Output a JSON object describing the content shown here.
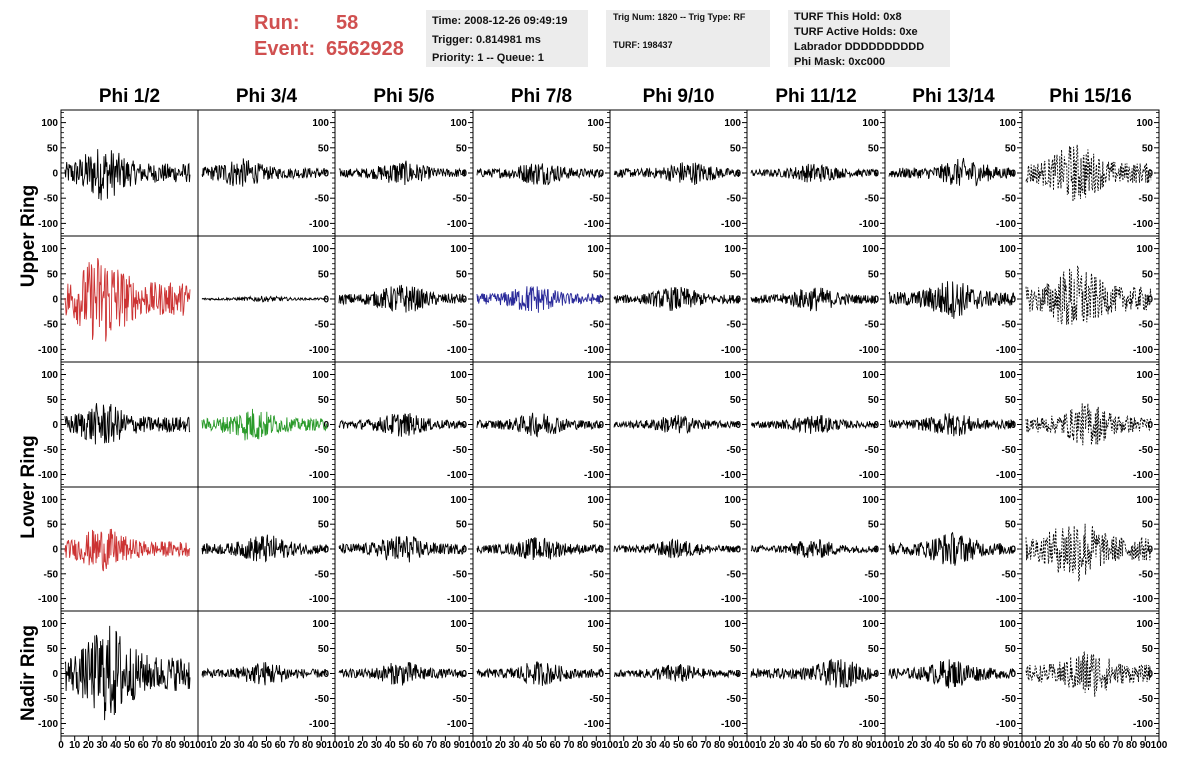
{
  "header": {
    "run_label": "Run:",
    "run_value": "58",
    "event_label": "Event:",
    "event_value": "6562928"
  },
  "info_boxes": {
    "time": [
      "Time: 2008-12-26 09:49:19",
      "Trigger: 0.814981 ms",
      "Priority: 1 -- Queue: 1"
    ],
    "trig": [
      "Trig Num: 1820 -- Trig Type: RF",
      "TURF: 198437"
    ],
    "turf": [
      "TURF This Hold: 0x8",
      "TURF Active Holds: 0xe",
      "Labrador DDDDDDDDDD",
      "Phi Mask: 0xc000"
    ]
  },
  "columns": [
    "Phi 1/2",
    "Phi 3/4",
    "Phi 5/6",
    "Phi 7/8",
    "Phi 9/10",
    "Phi 11/12",
    "Phi 13/14",
    "Phi 15/16"
  ],
  "rings": [
    "Upper Ring",
    "Lower Ring",
    "Nadir Ring"
  ],
  "colors": {
    "header_red": "#d05050",
    "box_bg": "#ececec",
    "trace_default": "#000000",
    "trace_red": "#cc3333",
    "trace_blue": "#2a2a9a",
    "trace_green": "#2a9a2a"
  },
  "chart_data": {
    "type": "line",
    "y_ticks": [
      "100",
      "50",
      "0",
      "-50",
      "-100"
    ],
    "ylim": [
      -125,
      125
    ],
    "x_ticks": [
      "0",
      "10",
      "20",
      "30",
      "40",
      "50",
      "60",
      "70",
      "80",
      "90",
      "100"
    ],
    "xlim": [
      0,
      100
    ],
    "panels": [
      [
        {
          "color": "#000000",
          "amp": 55,
          "peak": 30,
          "style": "solid"
        },
        {
          "color": "#000000",
          "amp": 30,
          "peak": 30,
          "style": "solid"
        },
        {
          "color": "#000000",
          "amp": 25,
          "peak": 50,
          "style": "solid"
        },
        {
          "color": "#000000",
          "amp": 25,
          "peak": 50,
          "style": "solid"
        },
        {
          "color": "#000000",
          "amp": 25,
          "peak": 60,
          "style": "solid"
        },
        {
          "color": "#000000",
          "amp": 20,
          "peak": 50,
          "style": "solid"
        },
        {
          "color": "#000000",
          "amp": 30,
          "peak": 60,
          "style": "solid"
        },
        {
          "color": "#000000",
          "amp": 60,
          "peak": 40,
          "style": "dashed"
        }
      ],
      [
        {
          "color": "#cc3333",
          "amp": 95,
          "peak": 30,
          "style": "solid"
        },
        {
          "color": "#000000",
          "amp": 6,
          "peak": 50,
          "style": "solid"
        },
        {
          "color": "#000000",
          "amp": 30,
          "peak": 50,
          "style": "solid"
        },
        {
          "color": "#2a2a9a",
          "amp": 30,
          "peak": 45,
          "style": "solid"
        },
        {
          "color": "#000000",
          "amp": 25,
          "peak": 50,
          "style": "solid"
        },
        {
          "color": "#000000",
          "amp": 25,
          "peak": 50,
          "style": "solid"
        },
        {
          "color": "#000000",
          "amp": 40,
          "peak": 50,
          "style": "solid"
        },
        {
          "color": "#000000",
          "amp": 70,
          "peak": 40,
          "style": "dashed"
        }
      ],
      [
        {
          "color": "#000000",
          "amp": 45,
          "peak": 30,
          "style": "solid"
        },
        {
          "color": "#2a9a2a",
          "amp": 35,
          "peak": 40,
          "style": "solid"
        },
        {
          "color": "#000000",
          "amp": 25,
          "peak": 50,
          "style": "solid"
        },
        {
          "color": "#000000",
          "amp": 25,
          "peak": 50,
          "style": "solid"
        },
        {
          "color": "#000000",
          "amp": 20,
          "peak": 50,
          "style": "solid"
        },
        {
          "color": "#000000",
          "amp": 20,
          "peak": 50,
          "style": "solid"
        },
        {
          "color": "#000000",
          "amp": 25,
          "peak": 50,
          "style": "solid"
        },
        {
          "color": "#000000",
          "amp": 45,
          "peak": 50,
          "style": "dashed"
        }
      ],
      [
        {
          "color": "#cc3333",
          "amp": 45,
          "peak": 30,
          "style": "solid"
        },
        {
          "color": "#000000",
          "amp": 30,
          "peak": 50,
          "style": "solid"
        },
        {
          "color": "#000000",
          "amp": 30,
          "peak": 50,
          "style": "solid"
        },
        {
          "color": "#000000",
          "amp": 25,
          "peak": 50,
          "style": "solid"
        },
        {
          "color": "#000000",
          "amp": 20,
          "peak": 50,
          "style": "solid"
        },
        {
          "color": "#000000",
          "amp": 20,
          "peak": 50,
          "style": "solid"
        },
        {
          "color": "#000000",
          "amp": 35,
          "peak": 50,
          "style": "solid"
        },
        {
          "color": "#000000",
          "amp": 70,
          "peak": 40,
          "style": "dashed"
        }
      ],
      [
        {
          "color": "#000000",
          "amp": 100,
          "peak": 35,
          "style": "solid"
        },
        {
          "color": "#000000",
          "amp": 25,
          "peak": 50,
          "style": "solid"
        },
        {
          "color": "#000000",
          "amp": 25,
          "peak": 50,
          "style": "solid"
        },
        {
          "color": "#000000",
          "amp": 25,
          "peak": 50,
          "style": "solid"
        },
        {
          "color": "#000000",
          "amp": 20,
          "peak": 50,
          "style": "solid"
        },
        {
          "color": "#000000",
          "amp": 30,
          "peak": 70,
          "style": "solid"
        },
        {
          "color": "#000000",
          "amp": 30,
          "peak": 50,
          "style": "solid"
        },
        {
          "color": "#000000",
          "amp": 50,
          "peak": 50,
          "style": "dashed"
        }
      ]
    ]
  }
}
